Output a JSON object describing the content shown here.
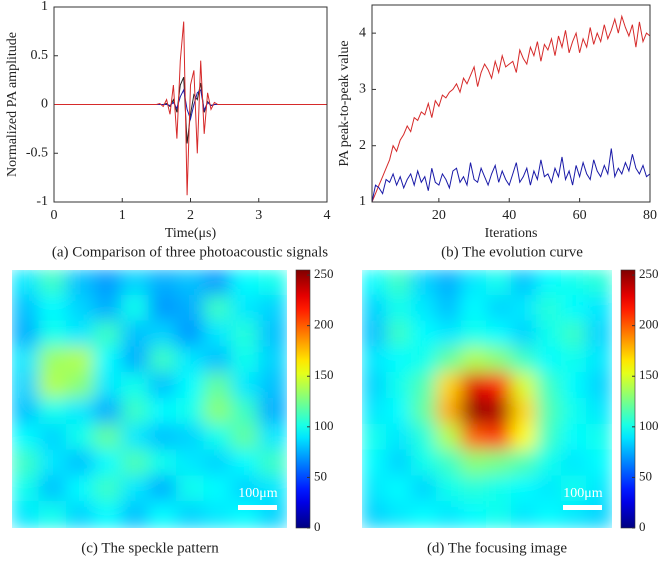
{
  "chart_data": [
    {
      "type": "line",
      "xlabel": "Time(μs)",
      "ylabel": "Normalized PA amplitude",
      "caption": "(a) Comparison of three photoacoustic signals",
      "xlim": [
        0,
        4
      ],
      "ylim": [
        -1,
        1
      ],
      "xticks": [
        0,
        1,
        2,
        3,
        4
      ],
      "yticks": [
        -1,
        -0.5,
        0,
        0.5,
        1
      ],
      "x": [
        0,
        1.5,
        1.55,
        1.6,
        1.65,
        1.7,
        1.75,
        1.8,
        1.85,
        1.9,
        1.95,
        2.0,
        2.05,
        2.1,
        2.15,
        2.2,
        2.25,
        2.3,
        2.35,
        2.4,
        2.5,
        4
      ],
      "series": [
        {
          "color": "#222222",
          "values": [
            0,
            0,
            0,
            0,
            0.01,
            -0.02,
            0.05,
            -0.08,
            0.2,
            0.28,
            -0.4,
            -0.1,
            0.1,
            0.05,
            0.22,
            -0.08,
            0.03,
            -0.01,
            0,
            0,
            0,
            0
          ]
        },
        {
          "color": "#1a1aa8",
          "values": [
            0,
            0,
            0,
            0,
            0,
            -0.01,
            0.02,
            -0.04,
            0.08,
            0.15,
            -0.05,
            -0.15,
            0.0,
            0.12,
            0.15,
            -0.06,
            0.02,
            -0.01,
            0,
            0,
            0,
            0
          ]
        },
        {
          "color": "#d62a2a",
          "values": [
            0,
            0,
            0.01,
            -0.02,
            0.05,
            -0.1,
            0.2,
            -0.35,
            0.45,
            0.85,
            -0.93,
            0.2,
            0.35,
            -0.5,
            0.45,
            -0.3,
            0.12,
            -0.05,
            0.02,
            0,
            0,
            0
          ]
        }
      ]
    },
    {
      "type": "line",
      "xlabel": "Iterations",
      "ylabel": "PA peak-to-peak value",
      "caption": "(b) The evolution curve",
      "xlim": [
        1,
        80
      ],
      "ylim": [
        1,
        4.5
      ],
      "xticks": [
        20,
        40,
        60,
        80
      ],
      "yticks": [
        1,
        2,
        3,
        4
      ],
      "x": [
        1,
        2,
        3,
        4,
        5,
        6,
        7,
        8,
        9,
        10,
        11,
        12,
        13,
        14,
        15,
        16,
        17,
        18,
        19,
        20,
        21,
        22,
        23,
        24,
        25,
        26,
        27,
        28,
        29,
        30,
        31,
        32,
        33,
        34,
        35,
        36,
        37,
        38,
        39,
        40,
        41,
        42,
        43,
        44,
        45,
        46,
        47,
        48,
        49,
        50,
        51,
        52,
        53,
        54,
        55,
        56,
        57,
        58,
        59,
        60,
        61,
        62,
        63,
        64,
        65,
        66,
        67,
        68,
        69,
        70,
        71,
        72,
        73,
        74,
        75,
        76,
        77,
        78,
        79,
        80
      ],
      "series": [
        {
          "color": "#d62a2a",
          "values": [
            1.0,
            1.15,
            1.3,
            1.45,
            1.6,
            1.75,
            2.0,
            1.9,
            2.1,
            2.2,
            2.35,
            2.25,
            2.5,
            2.45,
            2.6,
            2.55,
            2.75,
            2.5,
            2.8,
            2.7,
            2.9,
            2.85,
            2.95,
            3.0,
            3.1,
            2.95,
            3.2,
            3.1,
            3.25,
            3.4,
            3.05,
            3.3,
            3.45,
            3.35,
            3.2,
            3.5,
            3.3,
            3.6,
            3.4,
            3.45,
            3.5,
            3.3,
            3.7,
            3.55,
            3.45,
            3.75,
            3.6,
            3.85,
            3.5,
            3.8,
            3.7,
            3.9,
            3.6,
            3.95,
            3.75,
            4.05,
            3.65,
            3.85,
            4.0,
            3.65,
            3.9,
            3.75,
            4.1,
            3.8,
            4.0,
            3.85,
            4.15,
            3.9,
            4.05,
            4.25,
            4.0,
            4.3,
            4.1,
            3.95,
            4.15,
            3.75,
            4.2,
            3.85,
            4.0,
            3.95
          ]
        },
        {
          "color": "#1a1aa8",
          "values": [
            1.0,
            1.3,
            1.25,
            1.15,
            1.4,
            1.35,
            1.5,
            1.3,
            1.45,
            1.25,
            1.4,
            1.5,
            1.3,
            1.55,
            1.35,
            1.45,
            1.2,
            1.6,
            1.35,
            1.3,
            1.5,
            1.4,
            1.25,
            1.55,
            1.6,
            1.35,
            1.45,
            1.3,
            1.7,
            1.4,
            1.35,
            1.6,
            1.45,
            1.3,
            1.5,
            1.65,
            1.35,
            1.55,
            1.4,
            1.3,
            1.5,
            1.7,
            1.35,
            1.45,
            1.6,
            1.3,
            1.55,
            1.4,
            1.75,
            1.45,
            1.5,
            1.35,
            1.6,
            1.45,
            1.8,
            1.4,
            1.55,
            1.3,
            1.65,
            1.45,
            1.7,
            1.5,
            1.4,
            1.75,
            1.55,
            1.45,
            1.65,
            1.5,
            1.95,
            1.45,
            1.6,
            1.5,
            1.7,
            1.55,
            1.85,
            1.6,
            1.5,
            1.65,
            1.45,
            1.5
          ]
        }
      ]
    },
    {
      "type": "heatmap",
      "caption": "(c) The speckle pattern",
      "scale_bar": "100μm",
      "clim": [
        0,
        255
      ],
      "cticks": [
        0,
        50,
        100,
        150,
        200,
        250
      ],
      "z": [
        [
          90,
          110,
          80,
          70,
          85,
          75,
          80,
          70,
          95,
          100
        ],
        [
          80,
          95,
          85,
          75,
          100,
          70,
          75,
          110,
          90,
          85
        ],
        [
          75,
          100,
          90,
          110,
          80,
          85,
          70,
          90,
          105,
          80
        ],
        [
          90,
          135,
          140,
          95,
          75,
          110,
          90,
          80,
          100,
          85
        ],
        [
          85,
          140,
          130,
          90,
          100,
          80,
          95,
          120,
          90,
          80
        ],
        [
          80,
          100,
          90,
          75,
          110,
          95,
          100,
          130,
          110,
          75
        ],
        [
          95,
          85,
          100,
          120,
          90,
          80,
          85,
          100,
          120,
          90
        ],
        [
          110,
          90,
          80,
          95,
          115,
          100,
          90,
          85,
          95,
          110
        ],
        [
          100,
          80,
          95,
          110,
          90,
          75,
          100,
          95,
          85,
          90
        ],
        [
          90,
          100,
          85,
          95,
          80,
          95,
          85,
          90,
          95,
          85
        ]
      ]
    },
    {
      "type": "heatmap",
      "caption": "(d) The focusing image",
      "scale_bar": "100μm",
      "clim": [
        0,
        255
      ],
      "cticks": [
        0,
        50,
        100,
        150,
        200,
        250
      ],
      "z": [
        [
          95,
          110,
          85,
          75,
          90,
          100,
          80,
          95,
          100,
          105
        ],
        [
          85,
          100,
          90,
          80,
          95,
          85,
          90,
          105,
          95,
          90
        ],
        [
          80,
          110,
          95,
          90,
          100,
          95,
          85,
          100,
          110,
          85
        ],
        [
          90,
          95,
          100,
          120,
          140,
          130,
          110,
          95,
          100,
          90
        ],
        [
          85,
          100,
          115,
          170,
          230,
          215,
          150,
          110,
          95,
          85
        ],
        [
          90,
          95,
          120,
          180,
          250,
          245,
          170,
          115,
          100,
          90
        ],
        [
          100,
          90,
          105,
          140,
          200,
          210,
          160,
          110,
          95,
          100
        ],
        [
          95,
          85,
          100,
          110,
          130,
          125,
          115,
          100,
          90,
          95
        ],
        [
          90,
          95,
          85,
          100,
          105,
          100,
          95,
          90,
          100,
          90
        ],
        [
          85,
          90,
          95,
          90,
          95,
          100,
          90,
          95,
          90,
          85
        ]
      ]
    }
  ]
}
